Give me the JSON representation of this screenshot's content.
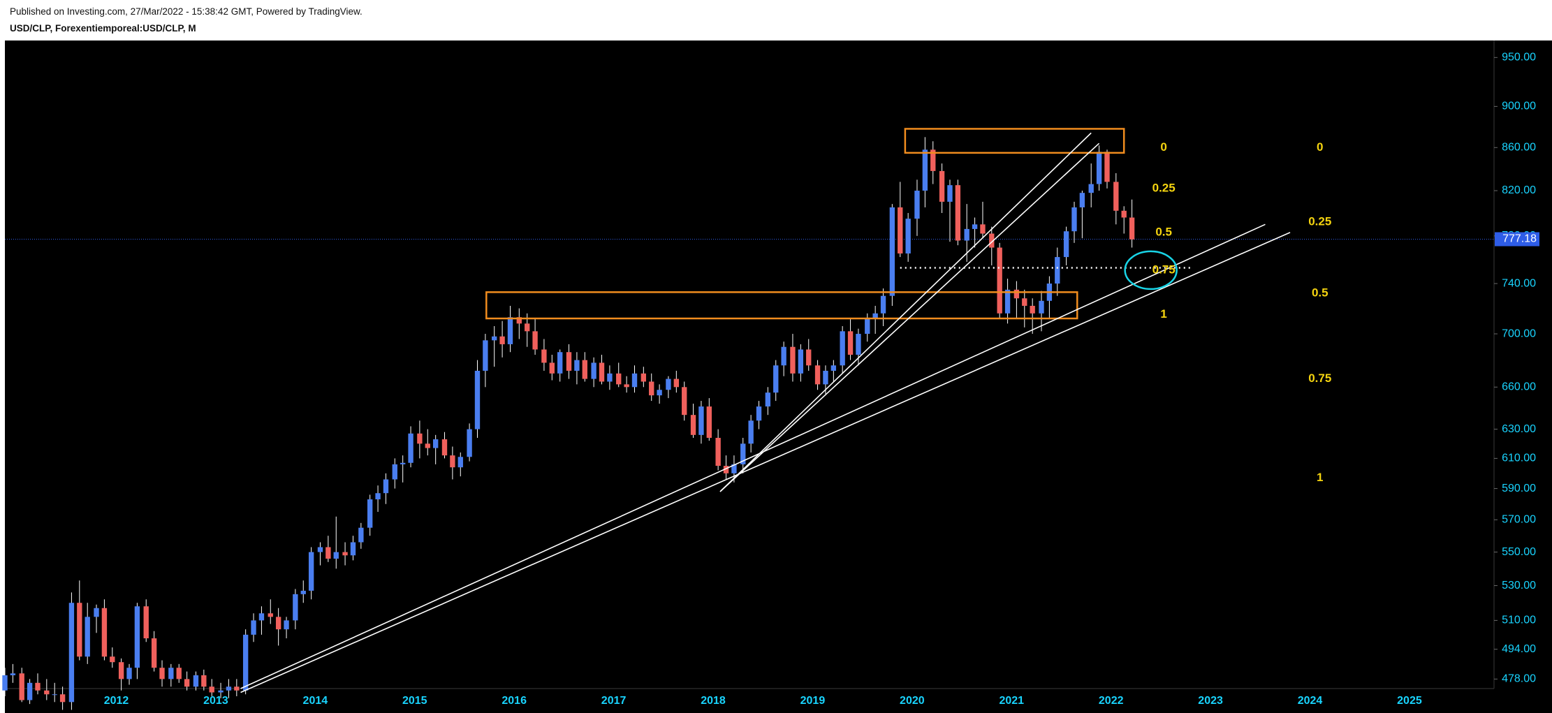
{
  "header": {
    "published": "Published on Investing.com, 27/Mar/2022 - 15:38:42 GMT, Powered by TradingView.",
    "symbol": "USD/CLP, Forexentiemporeal:USD/CLP, M"
  },
  "chart_data": {
    "type": "candlestick",
    "scale": "log",
    "grid": false,
    "colors": {
      "background": "#000000",
      "up": "#4a7ef0",
      "down": "#f0605c",
      "axis_text": "#19d4ff",
      "fib": "#f5d40f",
      "zone": "#f08c1e",
      "trendline": "#ffffff",
      "circle": "#19d4e6",
      "price_line": "#2e5de8"
    },
    "ylim": [
      473,
      968
    ],
    "y_ticks": [
      "950.00",
      "900.00",
      "860.00",
      "820.00",
      "780.00",
      "740.00",
      "700.00",
      "660.00",
      "630.00",
      "610.00",
      "590.00",
      "570.00",
      "550.00",
      "530.00",
      "510.00",
      "494.00",
      "478.00"
    ],
    "x_ticks": [
      {
        "label": "2012",
        "t": 2012.0
      },
      {
        "label": "2013",
        "t": 2013.0
      },
      {
        "label": "2014",
        "t": 2014.0
      },
      {
        "label": "2015",
        "t": 2015.0
      },
      {
        "label": "2016",
        "t": 2016.0
      },
      {
        "label": "2017",
        "t": 2017.0
      },
      {
        "label": "2018",
        "t": 2018.0
      },
      {
        "label": "2019",
        "t": 2019.0
      },
      {
        "label": "2020",
        "t": 2020.0
      },
      {
        "label": "2021",
        "t": 2021.0
      },
      {
        "label": "2022",
        "t": 2022.0
      },
      {
        "label": "2023",
        "t": 2023.0
      },
      {
        "label": "2024",
        "t": 2024.0
      },
      {
        "label": "2025",
        "t": 2025.0
      }
    ],
    "last_price": "777.18",
    "candles": [
      [
        2010.88,
        472,
        484,
        469,
        480
      ],
      [
        2010.96,
        480,
        486,
        476,
        481
      ],
      [
        2011.05,
        481,
        484,
        466,
        467
      ],
      [
        2011.13,
        467,
        478,
        465,
        476
      ],
      [
        2011.21,
        476,
        481,
        470,
        472
      ],
      [
        2011.3,
        472,
        478,
        467,
        470
      ],
      [
        2011.38,
        470,
        476,
        466,
        470
      ],
      [
        2011.46,
        470,
        474,
        462,
        466
      ],
      [
        2011.55,
        466,
        526,
        462,
        520
      ],
      [
        2011.63,
        520,
        533,
        488,
        490
      ],
      [
        2011.71,
        490,
        520,
        486,
        512
      ],
      [
        2011.8,
        512,
        519,
        503,
        517
      ],
      [
        2011.88,
        517,
        522,
        488,
        490
      ],
      [
        2011.96,
        490,
        495,
        484,
        487
      ],
      [
        2012.05,
        487,
        489,
        472,
        478
      ],
      [
        2012.13,
        478,
        486,
        475,
        484
      ],
      [
        2012.21,
        484,
        520,
        478,
        518
      ],
      [
        2012.3,
        518,
        522,
        498,
        500
      ],
      [
        2012.38,
        500,
        504,
        482,
        484
      ],
      [
        2012.46,
        484,
        488,
        474,
        478
      ],
      [
        2012.55,
        478,
        486,
        474,
        484
      ],
      [
        2012.63,
        484,
        486,
        476,
        478
      ],
      [
        2012.71,
        478,
        482,
        472,
        474
      ],
      [
        2012.8,
        474,
        482,
        472,
        480
      ],
      [
        2012.88,
        480,
        483,
        472,
        474
      ],
      [
        2012.96,
        474,
        478,
        469,
        471
      ],
      [
        2013.05,
        471,
        476,
        468,
        472
      ],
      [
        2013.13,
        472,
        478,
        468,
        474
      ],
      [
        2013.21,
        474,
        478,
        469,
        472
      ],
      [
        2013.3,
        472,
        505,
        470,
        502
      ],
      [
        2013.38,
        502,
        514,
        498,
        510
      ],
      [
        2013.46,
        510,
        518,
        502,
        514
      ],
      [
        2013.55,
        514,
        522,
        508,
        512
      ],
      [
        2013.63,
        512,
        517,
        496,
        505
      ],
      [
        2013.71,
        505,
        512,
        500,
        510
      ],
      [
        2013.8,
        510,
        528,
        505,
        525
      ],
      [
        2013.88,
        525,
        533,
        520,
        527
      ],
      [
        2013.96,
        527,
        553,
        522,
        550
      ],
      [
        2014.05,
        550,
        556,
        542,
        553
      ],
      [
        2014.13,
        553,
        560,
        544,
        546
      ],
      [
        2014.21,
        546,
        572,
        540,
        550
      ],
      [
        2014.3,
        550,
        556,
        542,
        548
      ],
      [
        2014.38,
        548,
        560,
        545,
        556
      ],
      [
        2014.46,
        556,
        568,
        552,
        565
      ],
      [
        2014.55,
        565,
        586,
        560,
        583
      ],
      [
        2014.63,
        583,
        592,
        575,
        587
      ],
      [
        2014.71,
        587,
        600,
        580,
        596
      ],
      [
        2014.8,
        596,
        610,
        590,
        606
      ],
      [
        2014.88,
        606,
        612,
        594,
        607
      ],
      [
        2014.96,
        607,
        632,
        604,
        627
      ],
      [
        2015.05,
        627,
        636,
        610,
        620
      ],
      [
        2015.13,
        620,
        630,
        612,
        617
      ],
      [
        2015.21,
        617,
        626,
        606,
        623
      ],
      [
        2015.3,
        623,
        628,
        610,
        612
      ],
      [
        2015.38,
        612,
        618,
        596,
        604
      ],
      [
        2015.46,
        604,
        614,
        598,
        611
      ],
      [
        2015.55,
        611,
        634,
        608,
        630
      ],
      [
        2015.63,
        630,
        680,
        624,
        672
      ],
      [
        2015.71,
        672,
        700,
        660,
        695
      ],
      [
        2015.8,
        695,
        706,
        675,
        698
      ],
      [
        2015.88,
        698,
        710,
        682,
        692
      ],
      [
        2015.96,
        692,
        722,
        686,
        713
      ],
      [
        2016.05,
        713,
        720,
        696,
        708
      ],
      [
        2016.13,
        708,
        716,
        690,
        702
      ],
      [
        2016.21,
        702,
        712,
        684,
        688
      ],
      [
        2016.3,
        688,
        696,
        672,
        678
      ],
      [
        2016.38,
        678,
        684,
        665,
        670
      ],
      [
        2016.46,
        670,
        688,
        664,
        686
      ],
      [
        2016.55,
        686,
        692,
        666,
        672
      ],
      [
        2016.63,
        672,
        686,
        662,
        680
      ],
      [
        2016.71,
        680,
        686,
        664,
        666
      ],
      [
        2016.8,
        666,
        682,
        660,
        678
      ],
      [
        2016.88,
        678,
        684,
        662,
        664
      ],
      [
        2016.96,
        664,
        676,
        658,
        670
      ],
      [
        2017.05,
        670,
        678,
        660,
        662
      ],
      [
        2017.13,
        662,
        668,
        656,
        660
      ],
      [
        2017.21,
        660,
        676,
        656,
        670
      ],
      [
        2017.3,
        670,
        675,
        660,
        664
      ],
      [
        2017.38,
        664,
        670,
        650,
        654
      ],
      [
        2017.46,
        654,
        662,
        648,
        658
      ],
      [
        2017.55,
        658,
        668,
        652,
        666
      ],
      [
        2017.63,
        666,
        672,
        656,
        660
      ],
      [
        2017.71,
        660,
        664,
        636,
        640
      ],
      [
        2017.8,
        640,
        648,
        624,
        626
      ],
      [
        2017.88,
        626,
        650,
        620,
        646
      ],
      [
        2017.96,
        646,
        652,
        622,
        624
      ],
      [
        2018.05,
        624,
        630,
        602,
        605
      ],
      [
        2018.13,
        605,
        612,
        596,
        600
      ],
      [
        2018.21,
        600,
        612,
        594,
        606
      ],
      [
        2018.3,
        606,
        624,
        600,
        620
      ],
      [
        2018.38,
        620,
        640,
        614,
        636
      ],
      [
        2018.46,
        636,
        650,
        630,
        646
      ],
      [
        2018.55,
        646,
        660,
        640,
        656
      ],
      [
        2018.63,
        656,
        680,
        650,
        676
      ],
      [
        2018.71,
        676,
        694,
        668,
        690
      ],
      [
        2018.8,
        690,
        700,
        664,
        670
      ],
      [
        2018.88,
        670,
        692,
        664,
        688
      ],
      [
        2018.96,
        688,
        696,
        672,
        676
      ],
      [
        2019.05,
        676,
        680,
        658,
        662
      ],
      [
        2019.13,
        662,
        676,
        655,
        672
      ],
      [
        2019.21,
        672,
        680,
        664,
        676
      ],
      [
        2019.3,
        676,
        706,
        670,
        702
      ],
      [
        2019.38,
        702,
        712,
        680,
        684
      ],
      [
        2019.46,
        684,
        704,
        676,
        700
      ],
      [
        2019.55,
        700,
        716,
        694,
        712
      ],
      [
        2019.63,
        712,
        722,
        700,
        716
      ],
      [
        2019.71,
        716,
        736,
        706,
        730
      ],
      [
        2019.8,
        730,
        808,
        722,
        805
      ],
      [
        2019.88,
        805,
        828,
        762,
        765
      ],
      [
        2019.96,
        765,
        800,
        758,
        795
      ],
      [
        2020.05,
        795,
        830,
        780,
        820
      ],
      [
        2020.13,
        820,
        870,
        805,
        858
      ],
      [
        2020.21,
        858,
        866,
        826,
        838
      ],
      [
        2020.3,
        838,
        845,
        800,
        810
      ],
      [
        2020.38,
        810,
        830,
        775,
        825
      ],
      [
        2020.46,
        825,
        830,
        772,
        776
      ],
      [
        2020.55,
        776,
        808,
        758,
        786
      ],
      [
        2020.63,
        786,
        796,
        770,
        790
      ],
      [
        2020.71,
        790,
        810,
        778,
        782
      ],
      [
        2020.8,
        782,
        788,
        755,
        770
      ],
      [
        2020.88,
        770,
        774,
        712,
        716
      ],
      [
        2020.96,
        716,
        744,
        708,
        735
      ],
      [
        2021.05,
        735,
        742,
        712,
        728
      ],
      [
        2021.13,
        728,
        735,
        705,
        722
      ],
      [
        2021.21,
        722,
        728,
        700,
        716
      ],
      [
        2021.3,
        716,
        734,
        702,
        726
      ],
      [
        2021.38,
        726,
        746,
        712,
        740
      ],
      [
        2021.46,
        740,
        770,
        730,
        762
      ],
      [
        2021.55,
        762,
        788,
        755,
        784
      ],
      [
        2021.63,
        784,
        810,
        774,
        805
      ],
      [
        2021.71,
        805,
        820,
        778,
        818
      ],
      [
        2021.8,
        818,
        845,
        805,
        826
      ],
      [
        2021.88,
        826,
        862,
        820,
        856
      ],
      [
        2021.96,
        856,
        858,
        822,
        828
      ],
      [
        2022.05,
        828,
        836,
        790,
        802
      ],
      [
        2022.13,
        802,
        806,
        782,
        796
      ],
      [
        2022.21,
        796,
        812,
        770,
        777
      ]
    ],
    "zones": [
      {
        "t0": 2019.93,
        "t1": 2022.13,
        "p_top": 878,
        "p_bot": 855
      },
      {
        "t0": 2015.72,
        "t1": 2021.66,
        "p_top": 733,
        "p_bot": 712
      }
    ],
    "trendlines": [
      {
        "t0": 2013.25,
        "p0": 473,
        "t1": 2023.55,
        "p1": 790
      },
      {
        "t0": 2013.25,
        "p0": 471,
        "t1": 2023.8,
        "p1": 783
      },
      {
        "t0": 2018.07,
        "p0": 588,
        "t1": 2021.8,
        "p1": 874
      },
      {
        "t0": 2018.07,
        "p0": 588,
        "t1": 2021.88,
        "p1": 864
      }
    ],
    "dotted_line": {
      "t0": 2019.88,
      "t1": 2022.8,
      "p": 753
    },
    "circle": {
      "t": 2022.4,
      "p": 751
    },
    "fib_labels": [
      {
        "text": "0",
        "t": 2022.53,
        "p": 860
      },
      {
        "text": "0.25",
        "t": 2022.53,
        "p": 822
      },
      {
        "text": "0.5",
        "t": 2022.53,
        "p": 783
      },
      {
        "text": "0.75",
        "t": 2022.53,
        "p": 751
      },
      {
        "text": "1",
        "t": 2022.53,
        "p": 715
      },
      {
        "text": "0",
        "t": 2024.1,
        "p": 860
      },
      {
        "text": "0.25",
        "t": 2024.1,
        "p": 792
      },
      {
        "text": "0.5",
        "t": 2024.1,
        "p": 732
      },
      {
        "text": "0.75",
        "t": 2024.1,
        "p": 666
      },
      {
        "text": "1",
        "t": 2024.1,
        "p": 597
      }
    ]
  }
}
